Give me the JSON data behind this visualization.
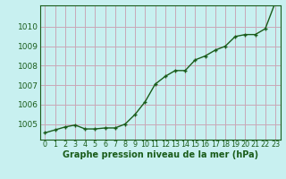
{
  "x": [
    0,
    1,
    2,
    3,
    4,
    5,
    6,
    7,
    8,
    9,
    10,
    11,
    12,
    13,
    14,
    15,
    16,
    17,
    18,
    19,
    20,
    21,
    22,
    23
  ],
  "y": [
    1004.55,
    1004.7,
    1004.85,
    1004.95,
    1004.75,
    1004.75,
    1004.8,
    1004.8,
    1005.0,
    1005.5,
    1006.15,
    1007.05,
    1007.45,
    1007.75,
    1007.75,
    1008.3,
    1008.5,
    1008.8,
    1009.0,
    1009.5,
    1009.6,
    1009.6,
    1009.9,
    1011.25
  ],
  "xlabel": "Graphe pression niveau de la mer (hPa)",
  "bg_color": "#c8f0f0",
  "grid_color": "#c8a8b8",
  "line_color": "#1a5c1a",
  "marker_color": "#1a5c1a",
  "yticks": [
    1005,
    1006,
    1007,
    1008,
    1009,
    1010
  ],
  "ylim": [
    1004.2,
    1011.1
  ],
  "xlim": [
    -0.5,
    23.5
  ],
  "font_size_xlabel": 7.0,
  "font_size_yticks": 6.5,
  "font_size_xticks": 5.8,
  "line_width": 1.0,
  "marker_size": 3.0
}
